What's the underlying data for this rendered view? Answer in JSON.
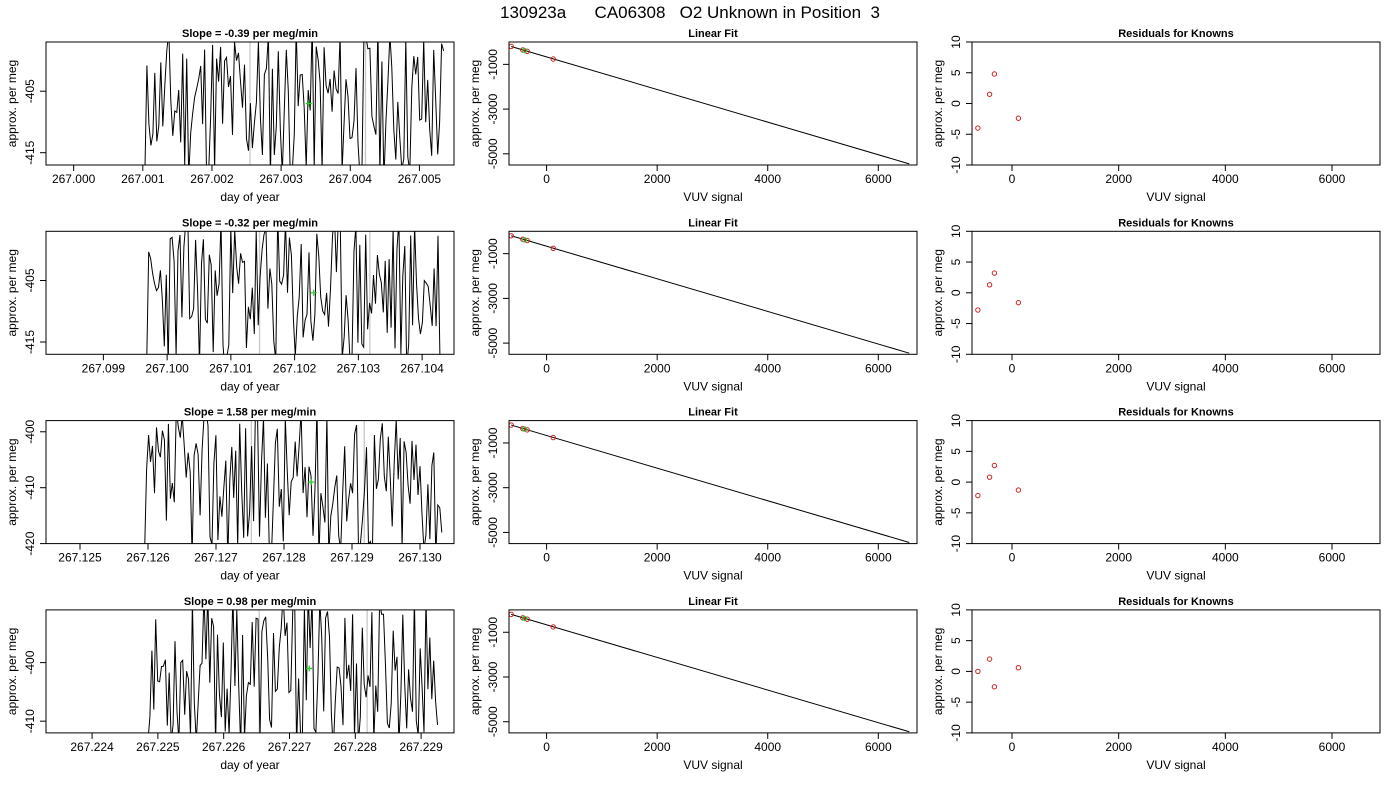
{
  "figure": {
    "title": "130923a      CA06308   O2 Unknown in Position  3"
  },
  "colors": {
    "trace": "#000000",
    "marker_known": "#cc2222",
    "marker_unknown": "#22cc22",
    "vline": "#c8c8c8"
  },
  "chart_data": [
    {
      "type": "line",
      "title": "Slope =  -0.39  per meg/min",
      "xlabel": "day of year",
      "ylabel": "approx. per meg",
      "xlim": [
        266.9996,
        267.0055
      ],
      "ylim": [
        -417,
        -397
      ],
      "xticks": [
        "267.000",
        "267.001",
        "267.002",
        "267.003",
        "267.004",
        "267.005"
      ],
      "yticks": [
        "-405",
        "-415"
      ],
      "vlines": [
        267.00255,
        267.00422
      ],
      "unknown_point": {
        "x": 267.0034,
        "y": -407
      },
      "trace_range": [
        267.00103,
        267.00535
      ],
      "seed": 11
    },
    {
      "type": "line",
      "title": "Linear Fit",
      "xlabel": "VUV signal",
      "ylabel": "approx. per meg",
      "xlim": [
        -680,
        6700
      ],
      "ylim": [
        -5500,
        0
      ],
      "xticks": [
        "0",
        "2000",
        "4000",
        "6000"
      ],
      "yticks": [
        "-1000",
        "-3000",
        "-5000"
      ],
      "fit_line": [
        {
          "x": -640,
          "y": -200
        },
        {
          "x": 6560,
          "y": -5450
        }
      ],
      "knowns": [
        {
          "x": -640,
          "y": -200
        },
        {
          "x": -430,
          "y": -355
        },
        {
          "x": -350,
          "y": -415
        },
        {
          "x": 120,
          "y": -760
        }
      ],
      "unknown_point": {
        "x": -400,
        "y": -380
      }
    },
    {
      "type": "scatter",
      "title": "Residuals for Knowns",
      "xlabel": "VUV signal",
      "ylabel": "approx. per meg",
      "xlim": [
        -750,
        6900
      ],
      "ylim": [
        -10,
        10
      ],
      "xticks": [
        "0",
        "2000",
        "4000",
        "6000"
      ],
      "yticks": [
        "-10",
        "-5",
        "0",
        "5",
        "10"
      ],
      "points": [
        {
          "x": -640,
          "y": -4
        },
        {
          "x": -420,
          "y": 1.5
        },
        {
          "x": -330,
          "y": 4.8
        },
        {
          "x": 120,
          "y": -2.4
        }
      ]
    },
    {
      "type": "line",
      "title": "Slope =  -0.32  per meg/min",
      "xlabel": "day of year",
      "ylabel": "approx. per meg",
      "xlim": [
        267.0981,
        267.1045
      ],
      "ylim": [
        -417,
        -397
      ],
      "xticks": [
        "267.099",
        "267.100",
        "267.101",
        "267.102",
        "267.103",
        "267.104"
      ],
      "yticks": [
        "-405",
        "-415"
      ],
      "vlines": [
        267.10145,
        267.10318
      ],
      "unknown_point": {
        "x": 267.1023,
        "y": -407
      },
      "trace_range": [
        267.09968,
        267.10428
      ],
      "seed": 23
    },
    {
      "type": "line",
      "title": "Linear Fit",
      "xlabel": "VUV signal",
      "ylabel": "approx. per meg",
      "xlim": [
        -680,
        6700
      ],
      "ylim": [
        -5500,
        0
      ],
      "xticks": [
        "0",
        "2000",
        "4000",
        "6000"
      ],
      "yticks": [
        "-1000",
        "-3000",
        "-5000"
      ],
      "fit_line": [
        {
          "x": -640,
          "y": -200
        },
        {
          "x": 6560,
          "y": -5450
        }
      ],
      "knowns": [
        {
          "x": -640,
          "y": -200
        },
        {
          "x": -430,
          "y": -355
        },
        {
          "x": -350,
          "y": -415
        },
        {
          "x": 120,
          "y": -760
        }
      ],
      "unknown_point": {
        "x": -400,
        "y": -380
      }
    },
    {
      "type": "scatter",
      "title": "Residuals for Knowns",
      "xlabel": "VUV signal",
      "ylabel": "approx. per meg",
      "xlim": [
        -750,
        6900
      ],
      "ylim": [
        -10,
        10
      ],
      "xticks": [
        "0",
        "2000",
        "4000",
        "6000"
      ],
      "yticks": [
        "-10",
        "-5",
        "0",
        "5",
        "10"
      ],
      "points": [
        {
          "x": -640,
          "y": -2.8
        },
        {
          "x": -420,
          "y": 1.3
        },
        {
          "x": -330,
          "y": 3.2
        },
        {
          "x": 120,
          "y": -1.6
        }
      ]
    },
    {
      "type": "line",
      "title": "Slope =  1.58  per meg/min",
      "xlabel": "day of year",
      "ylabel": "approx. per meg",
      "xlim": [
        267.1245,
        267.1305
      ],
      "ylim": [
        -420,
        -398
      ],
      "xticks": [
        "267.125",
        "267.126",
        "267.127",
        "267.128",
        "267.129",
        "267.130"
      ],
      "yticks": [
        "-400",
        "-410",
        "-420"
      ],
      "vlines": [
        267.12752,
        267.12918
      ],
      "unknown_point": {
        "x": 267.1284,
        "y": -409
      },
      "trace_range": [
        267.12595,
        267.13032
      ],
      "seed": 37
    },
    {
      "type": "line",
      "title": "Linear Fit",
      "xlabel": "VUV signal",
      "ylabel": "approx. per meg",
      "xlim": [
        -680,
        6700
      ],
      "ylim": [
        -5500,
        0
      ],
      "xticks": [
        "0",
        "2000",
        "4000",
        "6000"
      ],
      "yticks": [
        "-1000",
        "-3000",
        "-5000"
      ],
      "fit_line": [
        {
          "x": -640,
          "y": -200
        },
        {
          "x": 6560,
          "y": -5450
        }
      ],
      "knowns": [
        {
          "x": -640,
          "y": -200
        },
        {
          "x": -430,
          "y": -355
        },
        {
          "x": -350,
          "y": -415
        },
        {
          "x": 120,
          "y": -760
        }
      ],
      "unknown_point": {
        "x": -400,
        "y": -380
      }
    },
    {
      "type": "scatter",
      "title": "Residuals for Knowns",
      "xlabel": "VUV signal",
      "ylabel": "approx. per meg",
      "xlim": [
        -750,
        6900
      ],
      "ylim": [
        -10,
        10
      ],
      "xticks": [
        "0",
        "2000",
        "4000",
        "6000"
      ],
      "yticks": [
        "-10",
        "-5",
        "0",
        "5",
        "10"
      ],
      "points": [
        {
          "x": -640,
          "y": -2.2
        },
        {
          "x": -420,
          "y": 0.8
        },
        {
          "x": -330,
          "y": 2.7
        },
        {
          "x": 120,
          "y": -1.3
        }
      ]
    },
    {
      "type": "line",
      "title": "Slope =  0.98  per meg/min",
      "xlabel": "day of year",
      "ylabel": "approx. per meg",
      "xlim": [
        267.2233,
        267.2295
      ],
      "ylim": [
        -412,
        -391
      ],
      "xticks": [
        "267.224",
        "267.225",
        "267.226",
        "267.227",
        "267.228",
        "267.229"
      ],
      "yticks": [
        "-400",
        "-410"
      ],
      "vlines": [
        267.22654,
        267.22818
      ],
      "unknown_point": {
        "x": 267.2273,
        "y": -401
      },
      "trace_range": [
        267.22485,
        267.22925
      ],
      "seed": 53
    },
    {
      "type": "line",
      "title": "Linear Fit",
      "xlabel": "VUV signal",
      "ylabel": "approx. per meg",
      "xlim": [
        -680,
        6700
      ],
      "ylim": [
        -5500,
        0
      ],
      "xticks": [
        "0",
        "2000",
        "4000",
        "6000"
      ],
      "yticks": [
        "-1000",
        "-3000",
        "-5000"
      ],
      "fit_line": [
        {
          "x": -640,
          "y": -200
        },
        {
          "x": 6560,
          "y": -5450
        }
      ],
      "knowns": [
        {
          "x": -640,
          "y": -200
        },
        {
          "x": -430,
          "y": -355
        },
        {
          "x": -350,
          "y": -415
        },
        {
          "x": 120,
          "y": -760
        }
      ],
      "unknown_point": {
        "x": -400,
        "y": -380
      }
    },
    {
      "type": "scatter",
      "title": "Residuals for Knowns",
      "xlabel": "VUV signal",
      "ylabel": "approx. per meg",
      "xlim": [
        -750,
        6900
      ],
      "ylim": [
        -10,
        10
      ],
      "xticks": [
        "0",
        "2000",
        "4000",
        "6000"
      ],
      "yticks": [
        "-10",
        "-5",
        "0",
        "5",
        "10"
      ],
      "points": [
        {
          "x": -640,
          "y": 0
        },
        {
          "x": -420,
          "y": 2
        },
        {
          "x": -330,
          "y": -2.5
        },
        {
          "x": 120,
          "y": 0.6
        }
      ]
    }
  ]
}
